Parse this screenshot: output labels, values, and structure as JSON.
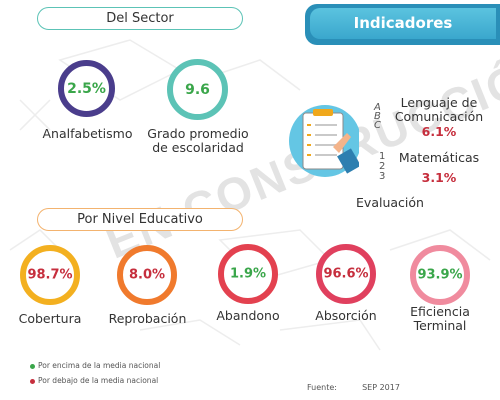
{
  "header": {
    "title": "Indicadores"
  },
  "sector": {
    "title": "Del Sector",
    "indicators": [
      {
        "value": "2.5%",
        "label": "Analfabetismo",
        "status": "above",
        "color": "#4a3d8c"
      },
      {
        "value": "9.6",
        "label": "Grado promedio de escolaridad",
        "status": "above",
        "color": "#5cc3b6"
      }
    ]
  },
  "evaluation": {
    "label": "Evaluación",
    "subjects": [
      {
        "name": "Lenguaje de Comunicación",
        "value": "6.1%"
      },
      {
        "name": "Matemáticas",
        "value": "3.1%"
      }
    ],
    "abc_glyphs": "A B C",
    "num_glyphs": "1 2 3"
  },
  "nivel": {
    "title": "Por Nivel Educativo",
    "indicators": [
      {
        "value": "98.7%",
        "label": "Cobertura",
        "status": "below",
        "color": "#f3b020"
      },
      {
        "value": "8.0%",
        "label": "Reprobación",
        "status": "below",
        "color": "#f07a2d"
      },
      {
        "value": "1.9%",
        "label": "Abandono",
        "status": "above",
        "color": "#e3414f"
      },
      {
        "value": "96.6%",
        "label": "Absorción",
        "status": "below",
        "color": "#e0405e"
      },
      {
        "value": "93.9%",
        "label": "Eficiencia Terminal",
        "status": "above",
        "color": "#f08b9e"
      }
    ]
  },
  "legend": {
    "above": {
      "text": "Por encima de la media nacional",
      "color": "#3aa64a"
    },
    "below": {
      "text": "Por debajo de la media nacional",
      "color": "#c62e3d"
    }
  },
  "source": {
    "label": "Fuente:",
    "value": "SEP 2017"
  },
  "watermark": "EN CONSTRUCCIÓN"
}
